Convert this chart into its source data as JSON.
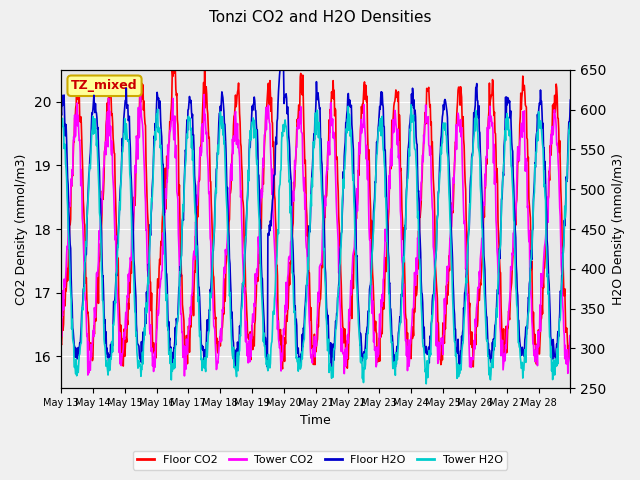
{
  "title": "Tonzi CO2 and H2O Densities",
  "xlabel": "Time",
  "ylabel_left": "CO2 Density (mmol/m3)",
  "ylabel_right": "H2O Density (mmol/m3)",
  "ylim_left": [
    15.5,
    20.5
  ],
  "ylim_right": [
    250,
    650
  ],
  "x_tick_labels": [
    "May 13",
    "May 14",
    "May 15",
    "May 16",
    "May 17",
    "May 18",
    "May 19",
    "May 20",
    "May 21",
    "May 22",
    "May 23",
    "May 24",
    "May 25",
    "May 26",
    "May 27",
    "May 28",
    ""
  ],
  "annotation_text": "TZ_mixed",
  "annotation_facecolor": "#FFFF99",
  "annotation_edgecolor": "#CCAA00",
  "annotation_textcolor": "#CC0000",
  "floor_co2_color": "#FF0000",
  "tower_co2_color": "#FF00FF",
  "floor_h2o_color": "#0000CC",
  "tower_h2o_color": "#00CCCC",
  "fig_facecolor": "#F0F0F0",
  "axes_facecolor": "#E8E8E8",
  "grid_color": "#FFFFFF",
  "line_width": 1.2,
  "n_points": 1008,
  "days": 16
}
